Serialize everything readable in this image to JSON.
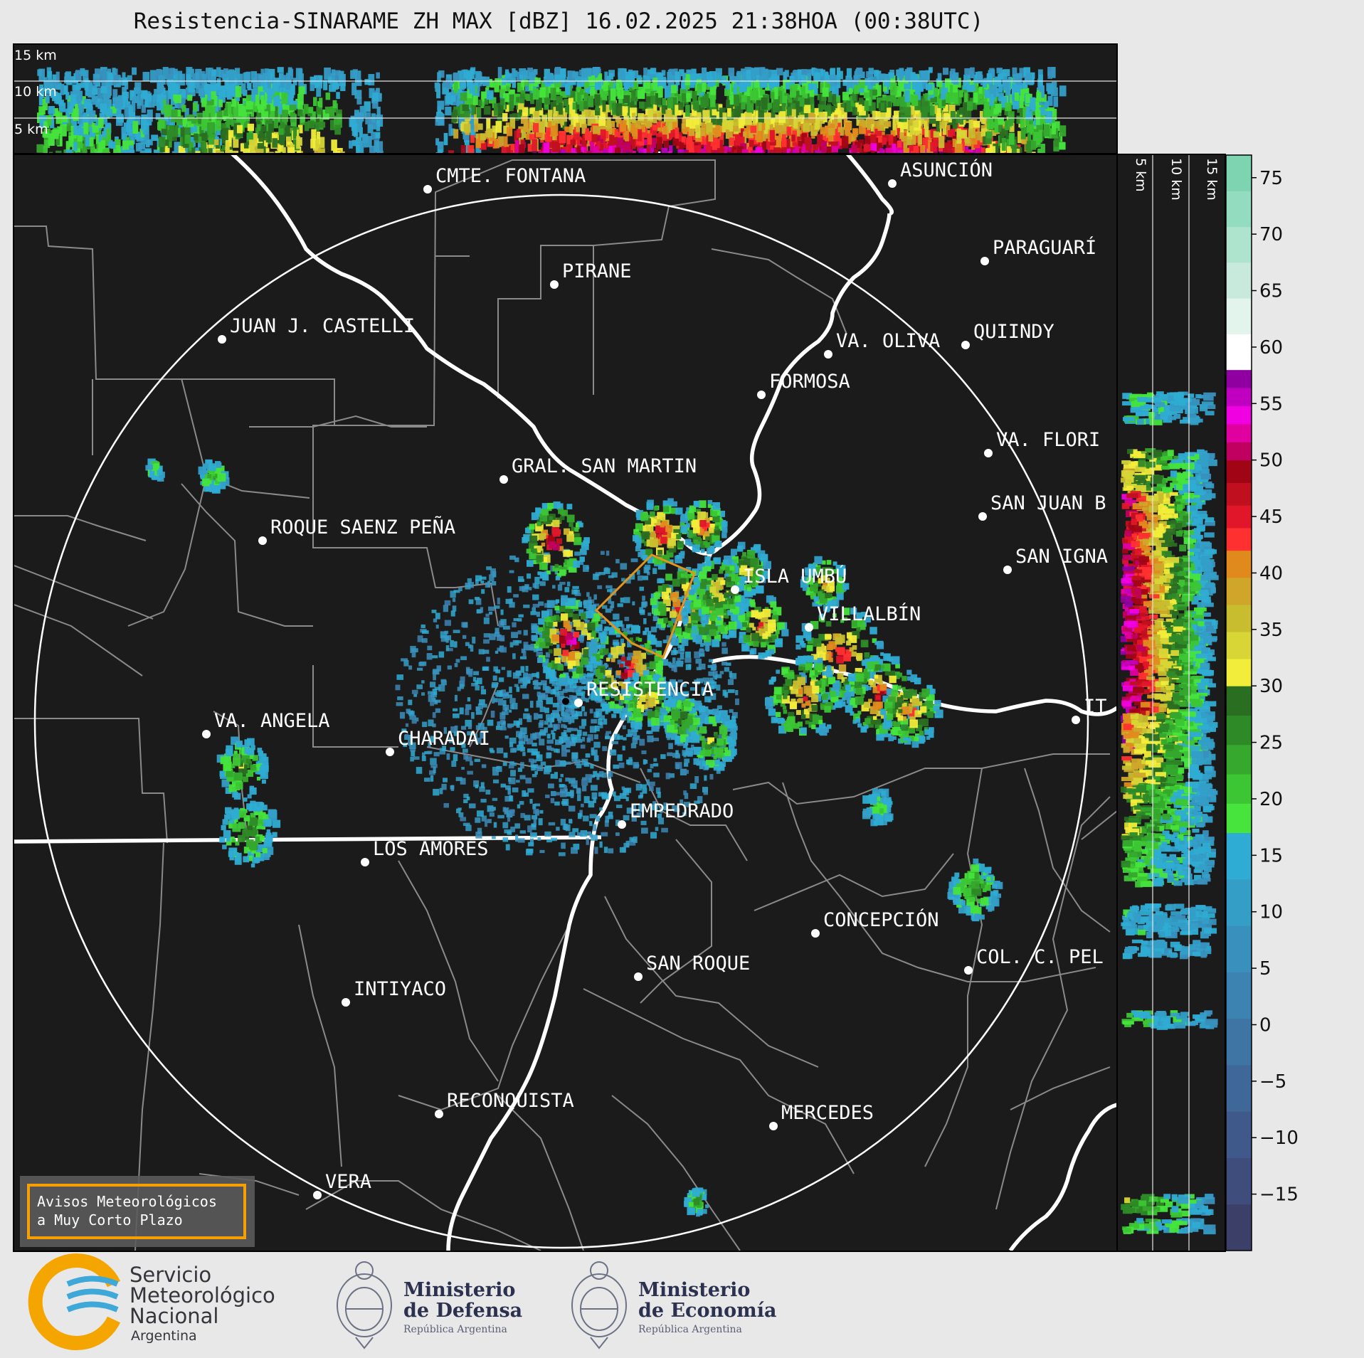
{
  "header": {
    "title": "Resistencia-SINARAME ZH MAX [dBZ] 16.02.2025 21:38HOA (00:38UTC)"
  },
  "cross_section_top": {
    "labels": [
      "15 km",
      "10 km",
      "5 km"
    ]
  },
  "cross_section_right": {
    "labels": [
      "5 km",
      "10 km",
      "15 km"
    ]
  },
  "radar_site": {
    "name": "RESISTENCIA"
  },
  "places": [
    "CMTE. FONTANA",
    "ASUNCIÓN",
    "PARAGUARÍ",
    "PIRANE",
    "JUAN J. CASTELLI",
    "VA. OLIVA",
    "QUIINDY",
    "FORMOSA",
    "VA. FLORI",
    "GRAL. SAN MARTIN",
    "SAN JUAN B",
    "ROQUE SAENZ PEÑA",
    "SAN IGNA",
    "ISLA UMBÚ",
    "VILLALBÍN",
    "RESISTENCIA",
    "VA. ANGELA",
    "CHARADAI",
    "IT",
    "EMPEDRADO",
    "LOS AMORES",
    "CONCEPCIÓN",
    "SAN ROQUE",
    "COL. C. PEL",
    "INTIYACO",
    "RECONQUISTA",
    "MERCEDES",
    "VERA"
  ],
  "colorbar": {
    "unit": "dBZ",
    "ticks": [
      "75",
      "70",
      "65",
      "60",
      "55",
      "50",
      "45",
      "40",
      "35",
      "30",
      "25",
      "20",
      "15",
      "10",
      "5",
      "0",
      "−5",
      "−10",
      "−15"
    ],
    "range": [
      -20,
      77
    ],
    "color_stops": [
      {
        "from": -20,
        "to": 17,
        "colors": [
          "#3c3f68",
          "#3e4d7b",
          "#3f5a8a",
          "#3f6898",
          "#3f75a5",
          "#3c83b2",
          "#3990bd",
          "#349ec7",
          "#2facd3"
        ]
      },
      {
        "from": 17,
        "to": 30,
        "colors": [
          "#46e43c",
          "#3cc634",
          "#35a82d",
          "#2e8a27",
          "#2a6e22"
        ]
      },
      {
        "from": 30,
        "to": 42,
        "colors": [
          "#f2ed3a",
          "#d8d636",
          "#c8bd2e",
          "#cfa62a",
          "#e08a1e"
        ]
      },
      {
        "from": 42,
        "to": 50,
        "colors": [
          "#ff3030",
          "#e2162a",
          "#c01020",
          "#a00515"
        ]
      },
      {
        "from": 50,
        "to": 58,
        "colors": [
          "#c00060",
          "#e000a0",
          "#f000e0",
          "#c000c0",
          "#9000a0"
        ]
      },
      {
        "from": 58,
        "to": 77,
        "colors": [
          "#ffffff",
          "#e3f4ec",
          "#c8eadc",
          "#aee3cd",
          "#94dcbf",
          "#7ed3b0"
        ]
      }
    ]
  },
  "warning_box": {
    "line1": "Avisos Meteorológicos",
    "line2": "a Muy Corto Plazo"
  },
  "footer": {
    "smn_line1": "Servicio",
    "smn_line2": "Meteorológico",
    "smn_line3": "Nacional",
    "smn_country": "Argentina",
    "defensa_line1": "Ministerio",
    "defensa_line2": "de Defensa",
    "defensa_sub": "República Argentina",
    "economia_line1": "Ministerio",
    "economia_line2": "de Economía",
    "economia_sub": "República Argentina"
  }
}
